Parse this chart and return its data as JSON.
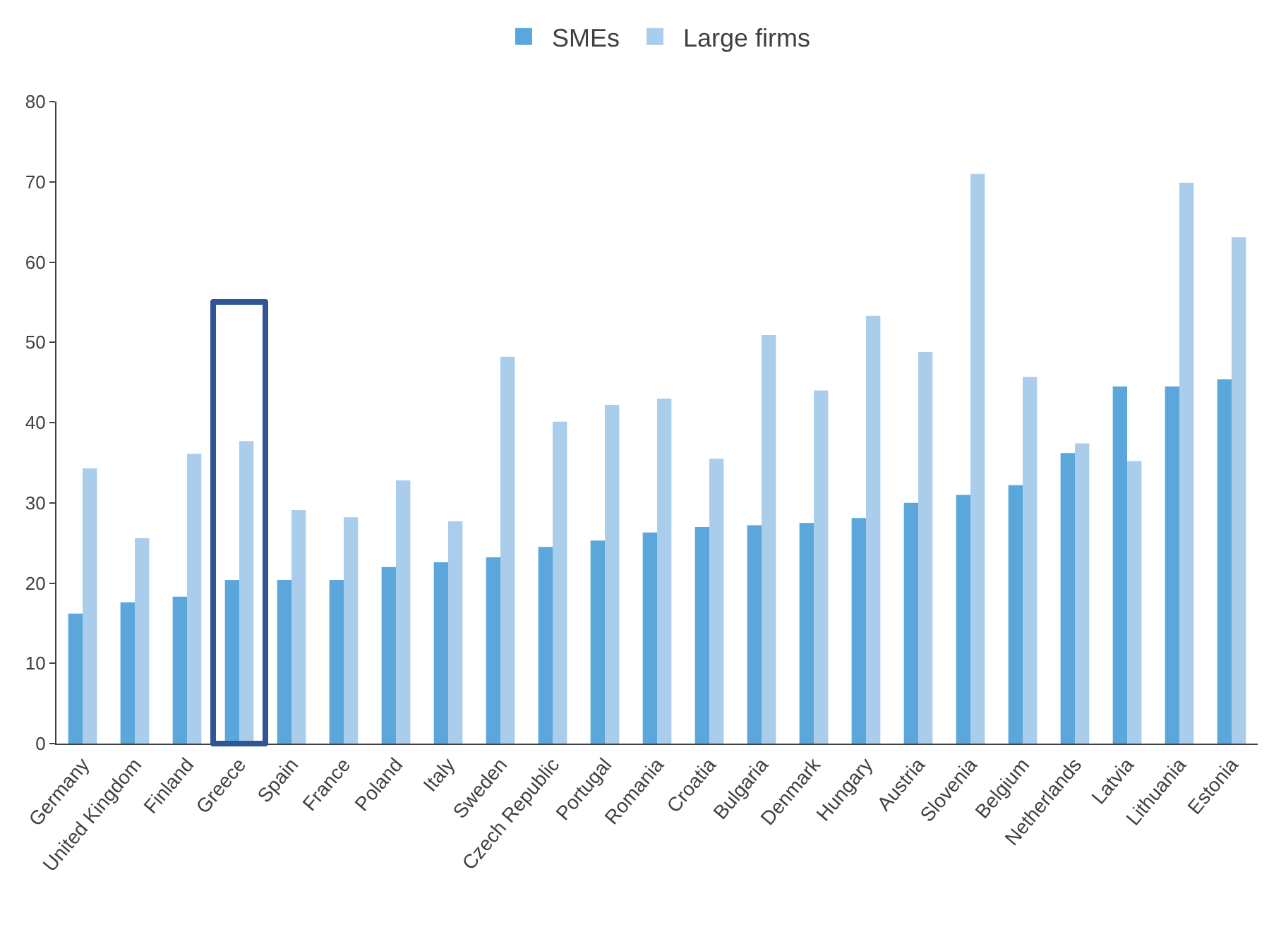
{
  "chart_data": {
    "type": "bar",
    "categories": [
      "Germany",
      "United Kingdom",
      "Finland",
      "Greece",
      "Spain",
      "France",
      "Poland",
      "Italy",
      "Sweden",
      "Czech Republic",
      "Portugal",
      "Romania",
      "Croatia",
      "Bulgaria",
      "Denmark",
      "Hungary",
      "Austria",
      "Slovenia",
      "Belgium",
      "Netherlands",
      "Latvia",
      "Lithuania",
      "Estonia"
    ],
    "series": [
      {
        "name": "SMEs",
        "color": "#5ba7dc",
        "values": [
          16.2,
          17.6,
          18.3,
          20.4,
          20.4,
          20.4,
          22,
          22.6,
          23.2,
          24.5,
          25.3,
          26.3,
          27,
          27.2,
          27.5,
          28.1,
          30,
          31,
          32.2,
          36.2,
          44.5,
          44.5,
          45.4
        ]
      },
      {
        "name": "Large firms",
        "color": "#abcdec",
        "values": [
          34.3,
          25.6,
          36.1,
          37.7,
          29.1,
          28.2,
          32.8,
          27.7,
          48.2,
          40.1,
          42.2,
          43,
          35.5,
          50.9,
          44,
          53.3,
          48.8,
          71,
          45.7,
          37.4,
          35.2,
          69.9,
          63.1
        ]
      }
    ],
    "ylim": [
      0,
      80
    ],
    "yticks": [
      0,
      10,
      20,
      30,
      40,
      50,
      60,
      70,
      80
    ],
    "grid": false,
    "legend": "top"
  }
}
